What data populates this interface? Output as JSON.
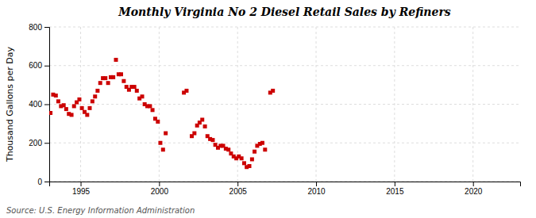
{
  "chart_data": {
    "type": "scatter",
    "title": "Monthly Virginia No 2 Diesel Retail Sales by Refiners",
    "ylabel": "Thousand Gallons per Day",
    "annotations": [
      "Source: U.S. Energy Information Administration"
    ],
    "color": "#cc0000",
    "marker": "square",
    "grid": true,
    "xlim": [
      1993.0,
      2023.0
    ],
    "ylim": [
      0,
      800
    ],
    "xticks": [
      1995,
      2000,
      2005,
      2010,
      2015,
      2020
    ],
    "yticks": [
      0,
      200,
      400,
      600,
      800
    ],
    "x": [
      1993.08,
      1993.25,
      1993.42,
      1993.58,
      1993.75,
      1993.92,
      1994.08,
      1994.25,
      1994.42,
      1994.58,
      1994.75,
      1994.92,
      1995.08,
      1995.25,
      1995.42,
      1995.58,
      1995.75,
      1995.92,
      1996.08,
      1996.25,
      1996.42,
      1996.58,
      1996.75,
      1996.92,
      1997.08,
      1997.25,
      1997.42,
      1997.58,
      1997.75,
      1997.92,
      1998.08,
      1998.25,
      1998.42,
      1998.58,
      1998.75,
      1998.92,
      1999.08,
      1999.25,
      1999.42,
      1999.58,
      1999.75,
      1999.92,
      2000.08,
      2000.25,
      2000.42,
      2001.58,
      2001.75,
      2002.08,
      2002.25,
      2002.42,
      2002.58,
      2002.75,
      2002.92,
      2003.08,
      2003.25,
      2003.42,
      2003.58,
      2003.75,
      2003.92,
      2004.08,
      2004.25,
      2004.42,
      2004.58,
      2004.75,
      2004.92,
      2005.08,
      2005.25,
      2005.42,
      2005.58,
      2005.75,
      2005.92,
      2006.08,
      2006.25,
      2006.42,
      2006.58,
      2006.75,
      2007.08,
      2007.25
    ],
    "values": [
      355,
      450,
      445,
      415,
      390,
      395,
      375,
      350,
      345,
      390,
      410,
      425,
      380,
      360,
      345,
      380,
      415,
      440,
      470,
      510,
      535,
      535,
      510,
      540,
      540,
      630,
      555,
      555,
      520,
      490,
      475,
      490,
      490,
      470,
      430,
      440,
      400,
      390,
      390,
      370,
      325,
      310,
      200,
      165,
      250,
      460,
      470,
      235,
      250,
      290,
      305,
      320,
      285,
      235,
      220,
      215,
      190,
      175,
      185,
      185,
      170,
      165,
      145,
      130,
      120,
      130,
      120,
      95,
      75,
      80,
      115,
      155,
      185,
      195,
      200,
      165,
      460,
      470
    ]
  }
}
